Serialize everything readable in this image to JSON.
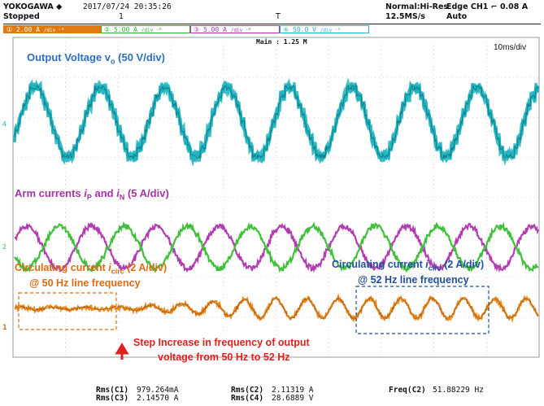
{
  "header": {
    "brand": "YOKOGAWA ◆",
    "datetime": "2017/07/24 20:35:26",
    "state": "Stopped",
    "acq_mode": "Normal:Hi-Res",
    "sample_rate": "12.5MS/s",
    "trigger_type": "Edge CH1 ⌐ 0.08 A",
    "trigger_mode": "Auto",
    "marker_1": "1",
    "marker_t": "T"
  },
  "channels": [
    {
      "num": "1",
      "setting": "2.00 A",
      "suffix": "∕div ⁼ᴹ",
      "color": "#e07a10"
    },
    {
      "num": "2",
      "setting": "5.00 A",
      "suffix": "∕div ⁼ᴹ",
      "color": "#2fb52a"
    },
    {
      "num": "3",
      "setting": "5.00 A",
      "suffix": "∕div ⁼ᴹ",
      "color": "#b534b0"
    },
    {
      "num": "4",
      "setting": "50.0 V",
      "suffix": "∕div ⁼ᴹ",
      "color": "#23b8c9"
    }
  ],
  "main_zoom": "Main : 1.25 M",
  "timebase": "10ms/div",
  "annotations": {
    "output_voltage": "Output Voltage v",
    "output_voltage_sub": "o",
    "output_voltage_rest": " (50 V/div)",
    "arm_a": "Arm currents ",
    "arm_ip": "i",
    "arm_ip_sub": "P",
    "arm_and": " and ",
    "arm_in": "i",
    "arm_in_sub": "N",
    "arm_rest": " (5 A/div)",
    "circ_left_a": "Circulating current  ",
    "circ_left_i": "i",
    "circ_left_sub": "circ",
    "circ_left_rest": " (2 A/div)",
    "circ_left_line2": "@ 50 Hz line frequency",
    "circ_right_a": "Circulating current  ",
    "circ_right_i": "i",
    "circ_right_sub": "circ",
    "circ_right_rest": " (2 A/div)",
    "circ_right_line2": "@ 52 Hz line frequency",
    "step_line1": "Step Increase in frequency of output",
    "step_line2": "voltage from 50 Hz to 52 Hz"
  },
  "measurements": {
    "rms_c1_label": "Rms(C1)",
    "rms_c1_value": "979.264mA",
    "rms_c3_label": "Rms(C3)",
    "rms_c3_value": "2.14570 A",
    "rms_c2_label": "Rms(C2)",
    "rms_c2_value": "2.11319 A",
    "rms_c4_label": "Rms(C4)",
    "rms_c4_value": "28.6889 V",
    "freq_c2_label": "Freq(C2)",
    "freq_c2_value": "51.88229 Hz"
  },
  "ground_marker_4": "4",
  "ground_marker_2": "2",
  "ground_marker_1": "1",
  "colors": {
    "voltage": "#1fb3c0",
    "arm_p": "#b23db0",
    "arm_n": "#3fbf3a",
    "circ": "#f08a1e",
    "grid": "#b9b9b9",
    "ann_blue": "#2e6fc0",
    "ann_purple": "#a534a6",
    "ann_orange": "#e06a10",
    "ann_red": "#e02020",
    "ann_darkblue": "#1f4f9e"
  }
}
